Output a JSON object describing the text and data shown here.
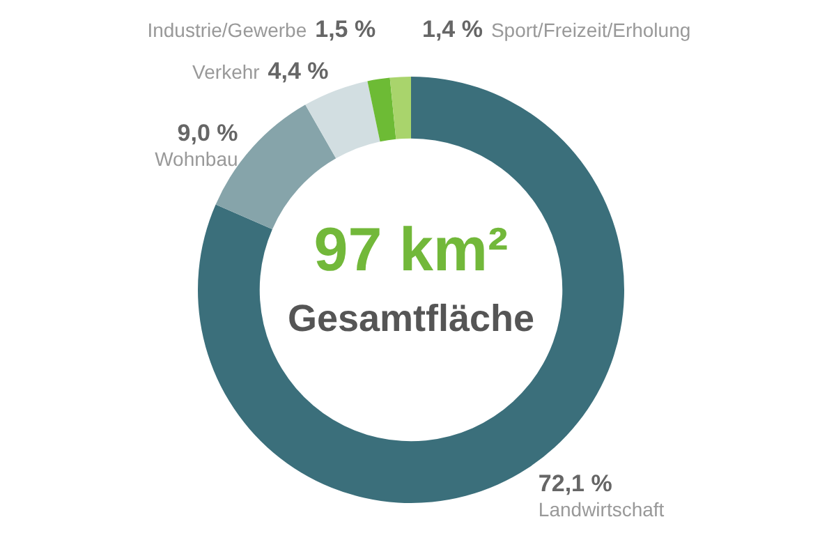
{
  "chart_data": {
    "type": "donut",
    "title": "97 km²",
    "subtitle": "Gesamtfläche",
    "categories": [
      "Landwirtschaft",
      "Wohnbau",
      "Verkehr",
      "Industrie/Gewerbe",
      "Sport/Freizeit/Erholung"
    ],
    "values": [
      72.1,
      9.0,
      4.4,
      1.5,
      1.4
    ],
    "value_labels": [
      "72,1 %",
      "9,0 %",
      "4,4 %",
      "1,5 %",
      "1,4 %"
    ],
    "colors": [
      "#3b6f7b",
      "#86a4aa",
      "#d2dee1",
      "#6dbb35",
      "#a9d46c"
    ],
    "legend": false
  }
}
